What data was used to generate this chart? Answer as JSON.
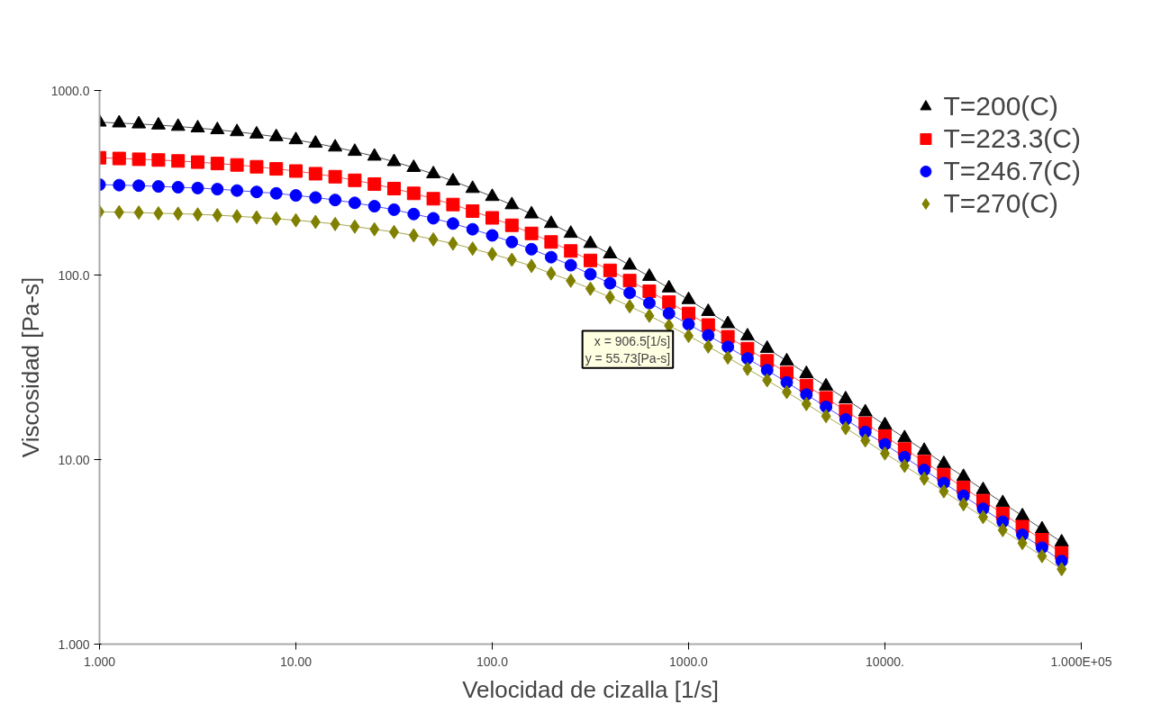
{
  "chart_data": {
    "type": "line",
    "xlabel": "Velocidad de cizalla [1/s]",
    "ylabel": "Viscosidad [Pa-s]",
    "x": [
      1,
      1.259,
      1.585,
      1.995,
      2.512,
      3.162,
      3.981,
      5.012,
      6.31,
      7.943,
      10,
      12.59,
      15.85,
      19.95,
      25.12,
      31.62,
      39.81,
      50.12,
      63.1,
      79.43,
      100,
      125.9,
      158.5,
      199.5,
      251.2,
      316.2,
      398.1,
      501.2,
      631,
      794.3,
      1000,
      1259,
      1585,
      1995,
      2512,
      3162,
      3981,
      5012,
      6310,
      7943,
      10000,
      12590,
      15850,
      19950,
      25120,
      31620,
      39810,
      50120,
      63100,
      79430
    ],
    "series": [
      {
        "name": "T=200(C)",
        "color": "#000000",
        "marker": "triangle",
        "values": [
          673,
          666,
          658,
          649,
          638,
          626,
          612,
          597,
          580,
          561,
          540,
          517,
          493,
          467,
          440,
          411,
          382,
          353,
          323,
          294,
          266,
          240,
          214,
          190,
          168,
          148,
          130,
          113,
          98.2,
          85.0,
          73.5,
          63.3,
          54.4,
          46.7,
          40.0,
          34.2,
          29.2,
          25.0,
          21.3,
          18.1,
          15.4,
          13.1,
          11.2,
          9.5,
          8.08,
          6.86,
          5.83,
          4.95,
          4.2,
          3.57
        ]
      },
      {
        "name": "T=223.3(C)",
        "color": "#ff0000",
        "marker": "square",
        "values": [
          432,
          428,
          424,
          420,
          415,
          409,
          402,
          395,
          386,
          376,
          366,
          354,
          341,
          326,
          311,
          294,
          277,
          259,
          241,
          222,
          204,
          186,
          168,
          151,
          135,
          120,
          106,
          93.3,
          81.7,
          71.3,
          61.9,
          53.6,
          46.3,
          39.9,
          34.3,
          29.5,
          25.2,
          21.6,
          18.4,
          15.7,
          13.4,
          11.4,
          9.74,
          8.29,
          7.05,
          5.99,
          5.09,
          4.33,
          3.68,
          3.12
        ]
      },
      {
        "name": "T=246.7(C)",
        "color": "#0000ff",
        "marker": "circle",
        "values": [
          309,
          307,
          305,
          302,
          299,
          296,
          292,
          287,
          282,
          277,
          270,
          263,
          255,
          246,
          236,
          226,
          214,
          203,
          190,
          177,
          164,
          151,
          138,
          125,
          113,
          101,
          90.2,
          80.0,
          70.5,
          61.9,
          54.1,
          47.1,
          40.8,
          35.3,
          30.5,
          26.2,
          22.5,
          19.3,
          16.5,
          14.1,
          12.1,
          10.3,
          8.78,
          7.47,
          6.36,
          5.41,
          4.6,
          3.91,
          3.33,
          2.82
        ]
      },
      {
        "name": "T=270(C)",
        "color": "#808000",
        "marker": "diamond",
        "values": [
          220,
          219,
          218,
          216,
          215,
          213,
          211,
          208,
          205,
          202,
          198,
          194,
          189,
          183,
          177,
          171,
          164,
          156,
          148,
          139,
          130,
          121,
          112,
          102,
          93.1,
          84.3,
          75.8,
          67.7,
          60.2,
          53.2,
          46.8,
          41.0,
          35.7,
          31.0,
          26.9,
          23.2,
          20.0,
          17.2,
          14.8,
          12.7,
          10.8,
          9.25,
          7.89,
          6.73,
          5.73,
          4.88,
          4.15,
          3.53,
          3.0,
          2.55
        ]
      }
    ],
    "xlim": [
      1,
      100000
    ],
    "ylim": [
      1,
      1000
    ],
    "log": "xy",
    "xticks": [
      {
        "value": 1,
        "label": "1.000"
      },
      {
        "value": 10,
        "label": "10.00"
      },
      {
        "value": 100,
        "label": "100.0"
      },
      {
        "value": 1000,
        "label": "1000.0"
      },
      {
        "value": 10000,
        "label": "10000."
      },
      {
        "value": 100000,
        "label": "1.000E+05"
      }
    ],
    "yticks": [
      {
        "value": 1,
        "label": "1.000"
      },
      {
        "value": 10,
        "label": "10.00"
      },
      {
        "value": 100,
        "label": "100.0"
      },
      {
        "value": 1000,
        "label": "1000.0"
      }
    ],
    "grid": false,
    "legend": "top right",
    "line_style": "solid",
    "annotations": [
      {
        "text": "x = 906.5[1/s]\ny = 55.73[Pa-s]",
        "x": 906.5,
        "y": 55.73
      }
    ]
  }
}
